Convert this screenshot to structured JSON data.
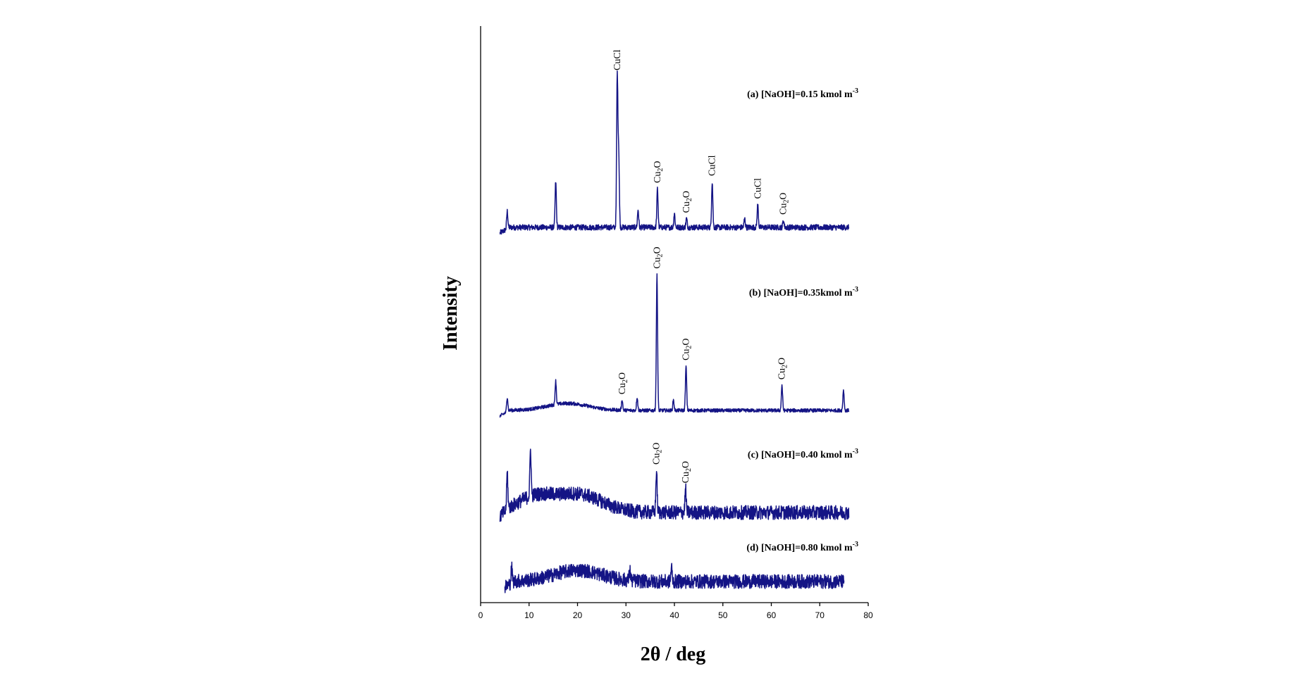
{
  "chart_data": {
    "type": "line",
    "xlabel": "2θ / deg",
    "ylabel": "Intensity",
    "xlim": [
      0,
      80
    ],
    "x_ticks": [
      "0",
      "10",
      "20",
      "30",
      "40",
      "50",
      "60",
      "70",
      "80"
    ],
    "line_color": "#141485",
    "grid": false,
    "series": [
      {
        "label": "(a) [NaOH]=0.15 kmol m",
        "label_sup": "-3",
        "x_range": [
          4,
          76
        ],
        "peaks": [
          {
            "x": 5.5,
            "height": 0.1
          },
          {
            "x": 15.5,
            "height": 0.26
          },
          {
            "x": 28.2,
            "height": 0.86
          },
          {
            "x": 28.5,
            "height": 0.42
          },
          {
            "x": 32.5,
            "height": 0.1
          },
          {
            "x": 36.5,
            "height": 0.22
          },
          {
            "x": 40.0,
            "height": 0.08
          },
          {
            "x": 42.5,
            "height": 0.05
          },
          {
            "x": 47.8,
            "height": 0.26
          },
          {
            "x": 54.5,
            "height": 0.05
          },
          {
            "x": 57.2,
            "height": 0.13
          },
          {
            "x": 62.5,
            "height": 0.04
          }
        ],
        "annotations": [
          {
            "text": "CuCl",
            "x": 28.2
          },
          {
            "text": "Cu2O",
            "x": 36.5
          },
          {
            "text": "Cu2O",
            "x": 42.5
          },
          {
            "text": "CuCl",
            "x": 47.8
          },
          {
            "text": "CuCl",
            "x": 57.2
          },
          {
            "text": "Cu2O",
            "x": 62.5
          }
        ]
      },
      {
        "label": "(b) [NaOH]=0.35kmol m",
        "label_sup": "-3",
        "x_range": [
          4,
          76
        ],
        "peaks": [
          {
            "x": 5.5,
            "height": 0.1
          },
          {
            "x": 15.5,
            "height": 0.16
          },
          {
            "x": 29.2,
            "height": 0.07
          },
          {
            "x": 32.3,
            "height": 0.09
          },
          {
            "x": 36.4,
            "height": 0.92
          },
          {
            "x": 39.8,
            "height": 0.07
          },
          {
            "x": 42.4,
            "height": 0.3
          },
          {
            "x": 62.2,
            "height": 0.17
          },
          {
            "x": 74.9,
            "height": 0.14
          }
        ],
        "annotations": [
          {
            "text": "Cu2O",
            "x": 29.2
          },
          {
            "text": "Cu2O",
            "x": 36.4
          },
          {
            "text": "Cu2O",
            "x": 42.4
          },
          {
            "text": "Cu2O",
            "x": 62.2
          }
        ]
      },
      {
        "label": "(c) [NaOH]=0.40 kmol m",
        "label_sup": "-3",
        "x_range": [
          4,
          76
        ],
        "peaks": [
          {
            "x": 5.5,
            "height": 0.22
          },
          {
            "x": 10.3,
            "height": 0.28
          },
          {
            "x": 36.3,
            "height": 0.25
          },
          {
            "x": 42.3,
            "height": 0.14
          }
        ],
        "annotations": [
          {
            "text": "Cu2O",
            "x": 36.3
          },
          {
            "text": "Cu2O",
            "x": 42.3
          }
        ]
      },
      {
        "label": "(d) [NaOH]=0.80 kmol m",
        "label_sup": "-3",
        "x_range": [
          5,
          75
        ],
        "peaks": [
          {
            "x": 6.4,
            "height": 0.1
          },
          {
            "x": 30.8,
            "height": 0.07
          },
          {
            "x": 39.4,
            "height": 0.09
          }
        ],
        "annotations": []
      }
    ]
  }
}
